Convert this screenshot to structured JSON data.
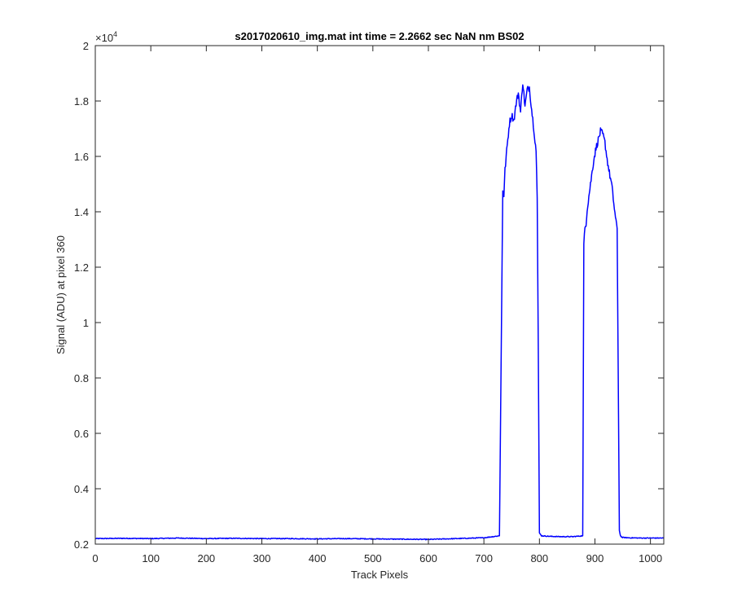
{
  "chart_data": {
    "type": "line",
    "title": "s2017020610_img.mat int time = 2.2662 sec  NaN nm BS02",
    "xlabel": "Track Pixels",
    "ylabel": "Signal (ADU) at pixel 360",
    "xlim": [
      0,
      1024
    ],
    "ylim": [
      2000,
      20000
    ],
    "y_exponent_label": "×10",
    "y_exponent_power": "4",
    "grid": false,
    "x_ticks": [
      0,
      100,
      200,
      300,
      400,
      500,
      600,
      700,
      800,
      900,
      1000
    ],
    "x_tick_labels": [
      "0",
      "100",
      "200",
      "300",
      "400",
      "500",
      "600",
      "700",
      "800",
      "900",
      "1000"
    ],
    "y_ticks": [
      2000,
      4000,
      6000,
      8000,
      10000,
      12000,
      14000,
      16000,
      18000,
      20000
    ],
    "y_tick_labels": [
      "0.2",
      "0.4",
      "0.6",
      "0.8",
      "1",
      "1.2",
      "1.4",
      "1.6",
      "1.8",
      "2"
    ],
    "series": [
      {
        "color": "#0000ff",
        "x": [
          0,
          50,
          100,
          150,
          200,
          250,
          300,
          350,
          400,
          450,
          500,
          550,
          600,
          650,
          700,
          728,
          734,
          736,
          738,
          742,
          746,
          750,
          754,
          758,
          762,
          766,
          770,
          774,
          778,
          782,
          786,
          790,
          794,
          796,
          798,
          800,
          804,
          820,
          840,
          860,
          878,
          880,
          882,
          884,
          886,
          890,
          894,
          898,
          902,
          906,
          910,
          914,
          918,
          922,
          926,
          930,
          934,
          938,
          940,
          942,
          944,
          946,
          948,
          950,
          960,
          980,
          1000,
          1024
        ],
        "values": [
          2200,
          2210,
          2200,
          2220,
          2200,
          2210,
          2200,
          2200,
          2190,
          2200,
          2190,
          2180,
          2170,
          2200,
          2230,
          2300,
          14800,
          14600,
          15500,
          16400,
          17200,
          17500,
          17300,
          17900,
          18300,
          17600,
          18700,
          17800,
          18400,
          18500,
          17700,
          17000,
          16200,
          14500,
          9000,
          2400,
          2300,
          2280,
          2270,
          2270,
          2300,
          12800,
          13400,
          13600,
          14100,
          14700,
          15300,
          15900,
          16300,
          16600,
          16900,
          16800,
          16500,
          15900,
          15400,
          15000,
          14300,
          13600,
          13400,
          8000,
          2500,
          2300,
          2260,
          2240,
          2230,
          2220,
          2220,
          2220
        ]
      }
    ]
  }
}
